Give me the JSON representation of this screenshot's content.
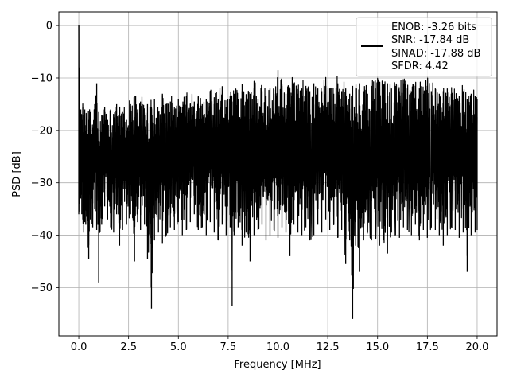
{
  "chart_data": {
    "type": "line",
    "title": "",
    "xlabel": "Frequency [MHz]",
    "ylabel": "PSD [dB]",
    "xlim": [
      -1.0,
      21.0
    ],
    "ylim": [
      -59.2,
      2.6
    ],
    "xticks": [
      0.0,
      2.5,
      5.0,
      7.5,
      10.0,
      12.5,
      15.0,
      17.5,
      20.0
    ],
    "xtick_labels": [
      "0.0",
      "2.5",
      "5.0",
      "7.5",
      "10.0",
      "12.5",
      "15.0",
      "17.5",
      "20.0"
    ],
    "yticks": [
      0,
      -10,
      -20,
      -30,
      -40,
      -50
    ],
    "ytick_labels": [
      "0",
      "−10",
      "−20",
      "−30",
      "−40",
      "−50"
    ],
    "grid": true,
    "legend": {
      "placement": "upper-right",
      "entries": [
        "ENOB: -3.26 bits",
        "SNR: -17.84 dB",
        "SINAD: -17.88 dB",
        "SFDR: 4.42"
      ]
    },
    "colors": {
      "line": "#000000",
      "grid": "#b0b0b0"
    },
    "series": [
      {
        "x": [
          0.0,
          0.02,
          0.05,
          0.1,
          0.15,
          0.2,
          0.25,
          0.3,
          0.35,
          0.4,
          0.5,
          0.58,
          0.7,
          0.8,
          0.9,
          1.0,
          1.15,
          1.3,
          1.45,
          1.6,
          1.75,
          1.9,
          2.05,
          2.2,
          2.4,
          2.6,
          2.8,
          2.95,
          3.1,
          3.3,
          3.45,
          3.58,
          3.65,
          3.8,
          4.0,
          4.2,
          4.4,
          4.6,
          4.8,
          5.0,
          5.2,
          5.4,
          5.6,
          5.8,
          6.0,
          6.2,
          6.4,
          6.6,
          6.8,
          7.0,
          7.2,
          7.4,
          7.6,
          7.7,
          7.8,
          8.0,
          8.2,
          8.4,
          8.6,
          8.8,
          9.0,
          9.2,
          9.4,
          9.6,
          9.8,
          10.0,
          10.2,
          10.4,
          10.6,
          10.8,
          11.0,
          11.2,
          11.4,
          11.6,
          11.8,
          12.0,
          12.2,
          12.4,
          12.6,
          12.8,
          13.0,
          13.2,
          13.4,
          13.6,
          13.75,
          13.9,
          14.1,
          14.3,
          14.5,
          14.7,
          14.9,
          15.1,
          15.3,
          15.5,
          15.7,
          15.9,
          16.1,
          16.3,
          16.5,
          16.7,
          16.9,
          17.1,
          17.3,
          17.5,
          17.7,
          17.9,
          18.1,
          18.3,
          18.5,
          18.7,
          18.9,
          19.1,
          19.3,
          19.5,
          19.7,
          19.9,
          20.0
        ],
        "upper": [
          0.0,
          -8.0,
          -14.5,
          -16.0,
          -18.0,
          -15.5,
          -17.0,
          -16.0,
          -19.0,
          -17.5,
          -18.0,
          -16.5,
          -19.5,
          -15.0,
          -11.0,
          -16.5,
          -17.0,
          -15.5,
          -18.0,
          -16.0,
          -17.5,
          -15.0,
          -17.0,
          -16.5,
          -18.0,
          -15.0,
          -13.5,
          -16.0,
          -14.5,
          -17.0,
          -15.0,
          -16.0,
          -15.5,
          -14.0,
          -16.5,
          -13.0,
          -15.0,
          -14.5,
          -16.0,
          -14.0,
          -15.5,
          -13.5,
          -15.0,
          -14.5,
          -13.5,
          -15.0,
          -14.0,
          -12.5,
          -15.0,
          -14.0,
          -13.0,
          -15.5,
          -13.5,
          -14.5,
          -13.0,
          -14.0,
          -12.5,
          -14.5,
          -13.0,
          -12.0,
          -14.0,
          -12.5,
          -13.5,
          -12.0,
          -13.0,
          -8.5,
          -11.5,
          -13.0,
          -12.0,
          -11.0,
          -13.0,
          -12.0,
          -11.5,
          -12.5,
          -11.0,
          -12.0,
          -12.5,
          -11.5,
          -12.0,
          -13.0,
          -11.0,
          -12.5,
          -12.0,
          -13.0,
          -11.5,
          -12.0,
          -11.0,
          -12.5,
          -13.0,
          -11.5,
          -12.0,
          -11.5,
          -12.5,
          -11.0,
          -12.0,
          -11.5,
          -12.5,
          -11.0,
          -12.0,
          -12.5,
          -11.5,
          -12.0,
          -13.0,
          -11.5,
          -12.5,
          -12.0,
          -13.0,
          -12.5,
          -12.0,
          -13.0,
          -14.0,
          -13.5,
          -12.5,
          -14.0,
          -13.0,
          -13.5,
          -14.0
        ],
        "lower": [
          -36.0,
          -34.0,
          -35.5,
          -33.0,
          -36.0,
          -37.0,
          -39.5,
          -37.5,
          -38.0,
          -36.5,
          -44.5,
          -37.0,
          -38.5,
          -35.0,
          -39.0,
          -49.0,
          -38.0,
          -34.5,
          -37.0,
          -38.5,
          -39.5,
          -36.0,
          -42.0,
          -39.0,
          -38.0,
          -36.0,
          -45.0,
          -37.5,
          -39.0,
          -38.0,
          -44.5,
          -50.0,
          -54.0,
          -41.0,
          -39.5,
          -41.5,
          -40.0,
          -38.5,
          -39.0,
          -37.5,
          -40.0,
          -39.0,
          -37.5,
          -36.0,
          -39.0,
          -38.5,
          -40.0,
          -37.5,
          -39.5,
          -41.0,
          -38.0,
          -40.0,
          -38.5,
          -53.5,
          -40.0,
          -38.5,
          -42.0,
          -39.5,
          -45.0,
          -40.0,
          -39.0,
          -38.0,
          -41.0,
          -40.0,
          -39.0,
          -40.5,
          -38.5,
          -39.5,
          -44.0,
          -38.0,
          -39.5,
          -40.0,
          -38.5,
          -41.0,
          -40.0,
          -38.0,
          -39.5,
          -37.0,
          -39.0,
          -38.0,
          -40.5,
          -39.0,
          -45.5,
          -41.0,
          -56.0,
          -42.0,
          -47.0,
          -41.0,
          -39.5,
          -41.0,
          -40.5,
          -42.0,
          -41.0,
          -43.5,
          -39.5,
          -40.0,
          -40.5,
          -38.5,
          -39.0,
          -40.0,
          -38.0,
          -41.0,
          -39.0,
          -40.5,
          -38.5,
          -39.0,
          -40.0,
          -42.0,
          -40.0,
          -38.5,
          -39.0,
          -40.5,
          -39.5,
          -47.0,
          -40.0,
          -39.5,
          -39.0
        ]
      }
    ]
  }
}
